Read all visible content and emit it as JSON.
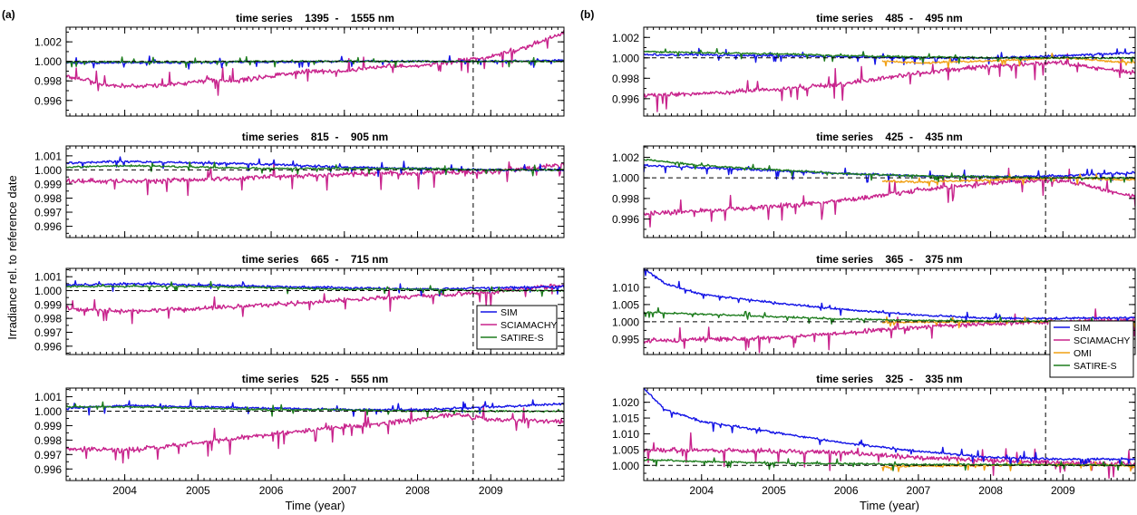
{
  "figure": {
    "colors": {
      "SIM": "#1414e6",
      "SCIAMACHY": "#c8238c",
      "OMI": "#f0a014",
      "SATIRE-S": "#1e7d1e"
    }
  },
  "chart_data": [
    {
      "group": "left",
      "panel_label": "(a)",
      "type": "line",
      "title": "time series    1395  -    1555 nm",
      "xlabel": "",
      "ylabel": "",
      "xlim": [
        2003.2,
        2010.0
      ],
      "ylim": [
        0.9944,
        1.0035
      ],
      "yticks": [
        0.996,
        0.998,
        1.0,
        1.002
      ],
      "ytick_labels": [
        "0.996",
        "0.998",
        "1.000",
        "1.002"
      ],
      "xticks": [
        2004,
        2005,
        2006,
        2007,
        2008,
        2009
      ],
      "xtick_labels": [],
      "reference_date": 2008.76,
      "reference_level": 1.0,
      "legend": null,
      "series": [
        {
          "name": "SIM",
          "x": [
            2003.2,
            2004.0,
            2005.0,
            2006.0,
            2007.0,
            2008.0,
            2009.0,
            2010.0
          ],
          "y": [
            0.99985,
            0.99985,
            0.9999,
            0.99995,
            1.0,
            1.0,
            1.0,
            1.0001
          ]
        },
        {
          "name": "SCIAMACHY",
          "x": [
            2003.2,
            2003.8,
            2004.5,
            2005.0,
            2005.5,
            2006.0,
            2006.5,
            2007.0,
            2007.5,
            2008.0,
            2008.5,
            2009.0,
            2009.5,
            2010.0
          ],
          "y": [
            0.9985,
            0.9975,
            0.9975,
            0.998,
            0.998,
            0.9985,
            0.999,
            0.999,
            0.9995,
            0.9995,
            1.0,
            1.0005,
            1.0015,
            1.003
          ]
        },
        {
          "name": "SATIRE-S",
          "x": [
            2003.2,
            2004.0,
            2005.0,
            2006.0,
            2007.0,
            2008.0,
            2009.0,
            2010.0
          ],
          "y": [
            0.99995,
            0.99995,
            0.99995,
            1.0,
            1.0,
            1.0,
            1.0,
            1.0
          ]
        }
      ]
    },
    {
      "group": "left",
      "type": "line",
      "title": "time series    815  -    905 nm",
      "xlabel": "",
      "ylabel": "Irradiance rel. to reference date",
      "xlim": [
        2003.2,
        2010.0
      ],
      "ylim": [
        0.9952,
        1.0017
      ],
      "yticks": [
        0.996,
        0.997,
        0.998,
        0.999,
        1.0,
        1.001
      ],
      "ytick_labels": [
        "0.996",
        "0.997",
        "0.998",
        "0.999",
        "1.000",
        "1.001"
      ],
      "xticks": [
        2004,
        2005,
        2006,
        2007,
        2008,
        2009
      ],
      "xtick_labels": [],
      "reference_date": 2008.76,
      "reference_level": 1.0,
      "legend": null,
      "series": [
        {
          "name": "SIM",
          "x": [
            2003.2,
            2004.0,
            2005.0,
            2006.0,
            2007.0,
            2008.0,
            2009.0,
            2010.0
          ],
          "y": [
            1.0005,
            1.0006,
            1.0005,
            1.0004,
            1.0002,
            1.0001,
            1.0,
            1.0
          ]
        },
        {
          "name": "SCIAMACHY",
          "x": [
            2003.2,
            2004.0,
            2005.0,
            2006.0,
            2007.0,
            2008.0,
            2009.0,
            2010.0
          ],
          "y": [
            0.9992,
            0.9992,
            0.9993,
            0.9995,
            0.9997,
            0.9998,
            0.9999,
            1.0004
          ]
        },
        {
          "name": "SATIRE-S",
          "x": [
            2003.2,
            2004.0,
            2005.0,
            2006.0,
            2007.0,
            2008.0,
            2009.0,
            2010.0
          ],
          "y": [
            1.0002,
            1.0003,
            1.0002,
            1.0001,
            1.0001,
            1.0001,
            1.0,
            1.0
          ]
        }
      ]
    },
    {
      "group": "left",
      "type": "line",
      "title": "time series    665  -    715 nm",
      "xlabel": "",
      "ylabel": "",
      "xlim": [
        2003.2,
        2010.0
      ],
      "ylim": [
        0.9954,
        1.0016
      ],
      "yticks": [
        0.996,
        0.997,
        0.998,
        0.999,
        1.0,
        1.001
      ],
      "ytick_labels": [
        "0.996",
        "0.997",
        "0.998",
        "0.999",
        "1.000",
        "1.001"
      ],
      "xticks": [
        2004,
        2005,
        2006,
        2007,
        2008,
        2009
      ],
      "xtick_labels": [],
      "reference_date": 2008.76,
      "reference_level": 1.0,
      "legend": {
        "position": "bottom-right",
        "entries": [
          "SIM",
          "SCIAMACHY",
          "SATIRE-S"
        ]
      },
      "series": [
        {
          "name": "SIM",
          "x": [
            2003.2,
            2004.0,
            2005.0,
            2006.0,
            2007.0,
            2008.0,
            2009.0,
            2010.0
          ],
          "y": [
            1.0004,
            1.0005,
            1.0004,
            1.0003,
            1.0002,
            1.0001,
            1.0002,
            1.0003
          ]
        },
        {
          "name": "SCIAMACHY",
          "x": [
            2003.2,
            2004.0,
            2005.0,
            2006.0,
            2007.0,
            2008.0,
            2009.0,
            2010.0
          ],
          "y": [
            0.9987,
            0.9985,
            0.9987,
            0.999,
            0.9993,
            0.9996,
            0.9999,
            1.0004
          ]
        },
        {
          "name": "SATIRE-S",
          "x": [
            2003.2,
            2004.0,
            2005.0,
            2006.0,
            2007.0,
            2008.0,
            2009.0,
            2010.0
          ],
          "y": [
            1.0003,
            1.0003,
            1.0003,
            1.0002,
            1.0001,
            1.0001,
            1.0,
            1.0
          ]
        }
      ]
    },
    {
      "group": "left",
      "type": "line",
      "title": "time series    525  -    555 nm",
      "xlabel": "Time (year)",
      "ylabel": "",
      "xlim": [
        2003.2,
        2010.0
      ],
      "ylim": [
        0.9952,
        1.0016
      ],
      "yticks": [
        0.996,
        0.997,
        0.998,
        0.999,
        1.0,
        1.001
      ],
      "ytick_labels": [
        "0.996",
        "0.997",
        "0.998",
        "0.999",
        "1.000",
        "1.001"
      ],
      "xticks": [
        2004,
        2005,
        2006,
        2007,
        2008,
        2009
      ],
      "xtick_labels": [
        "2004",
        "2005",
        "2006",
        "2007",
        "2008",
        "2009"
      ],
      "reference_date": 2008.76,
      "reference_level": 1.0,
      "legend": null,
      "series": [
        {
          "name": "SIM",
          "x": [
            2003.2,
            2004.0,
            2005.0,
            2006.0,
            2007.0,
            2008.0,
            2009.0,
            2010.0
          ],
          "y": [
            1.0002,
            1.0004,
            1.0003,
            1.0002,
            1.0001,
            1.0001,
            1.0003,
            1.0005
          ]
        },
        {
          "name": "SCIAMACHY",
          "x": [
            2003.2,
            2004.0,
            2005.0,
            2006.0,
            2007.0,
            2008.0,
            2008.5,
            2009.0,
            2010.0
          ],
          "y": [
            0.9974,
            0.9973,
            0.9978,
            0.9984,
            0.9989,
            0.9994,
            0.9998,
            0.9994,
            0.9993
          ]
        },
        {
          "name": "SATIRE-S",
          "x": [
            2003.2,
            2004.0,
            2005.0,
            2006.0,
            2007.0,
            2008.0,
            2009.0,
            2010.0
          ],
          "y": [
            1.0003,
            1.0003,
            1.0002,
            1.0001,
            1.0001,
            1.0,
            1.0,
            1.0
          ]
        }
      ]
    },
    {
      "group": "right",
      "panel_label": "(b)",
      "type": "line",
      "title": "time series    485  -    495 nm",
      "xlabel": "",
      "ylabel": "",
      "xlim": [
        2003.2,
        2010.0
      ],
      "ylim": [
        0.9943,
        1.003
      ],
      "yticks": [
        0.996,
        0.998,
        1.0,
        1.002
      ],
      "ytick_labels": [
        "0.996",
        "0.998",
        "1.000",
        "1.002"
      ],
      "xticks": [
        2004,
        2005,
        2006,
        2007,
        2008,
        2009
      ],
      "xtick_labels": [],
      "reference_date": 2008.76,
      "reference_level": 1.0,
      "legend": null,
      "series": [
        {
          "name": "SIM",
          "x": [
            2003.2,
            2004.0,
            2005.0,
            2006.0,
            2007.0,
            2008.0,
            2009.0,
            2010.0
          ],
          "y": [
            1.0003,
            1.0003,
            1.0002,
            1.0001,
            1.0,
            1.0,
            1.0002,
            1.0005
          ]
        },
        {
          "name": "SCIAMACHY",
          "x": [
            2003.2,
            2004.0,
            2005.0,
            2006.0,
            2007.0,
            2008.0,
            2009.0,
            2010.0
          ],
          "y": [
            0.9963,
            0.9965,
            0.9969,
            0.9975,
            0.9985,
            0.9992,
            0.9995,
            0.9985
          ]
        },
        {
          "name": "OMI",
          "x": [
            2006.5,
            2007.0,
            2008.0,
            2009.0,
            2010.0
          ],
          "y": [
            0.9997,
            0.9995,
            0.9997,
            1.0,
            0.9995
          ]
        },
        {
          "name": "SATIRE-S",
          "x": [
            2003.2,
            2004.0,
            2005.0,
            2006.0,
            2007.0,
            2008.0,
            2009.0,
            2010.0
          ],
          "y": [
            1.0006,
            1.0005,
            1.0004,
            1.0002,
            1.0001,
            1.0,
            1.0,
            1.0
          ]
        }
      ]
    },
    {
      "group": "right",
      "type": "line",
      "title": "time series    425  -    435 nm",
      "xlabel": "",
      "ylabel": "",
      "xlim": [
        2003.2,
        2010.0
      ],
      "ylim": [
        0.9942,
        1.0031
      ],
      "yticks": [
        0.996,
        0.998,
        1.0,
        1.002
      ],
      "ytick_labels": [
        "0.996",
        "0.998",
        "1.000",
        "1.002"
      ],
      "xticks": [
        2004,
        2005,
        2006,
        2007,
        2008,
        2009
      ],
      "xtick_labels": [],
      "reference_date": 2008.76,
      "reference_level": 1.0,
      "legend": null,
      "series": [
        {
          "name": "SIM",
          "x": [
            2003.2,
            2004.0,
            2005.0,
            2006.0,
            2007.0,
            2008.0,
            2009.0,
            2010.0
          ],
          "y": [
            1.0012,
            1.001,
            1.0007,
            1.0004,
            1.0002,
            1.0001,
            1.0002,
            1.0005
          ]
        },
        {
          "name": "SCIAMACHY",
          "x": [
            2003.2,
            2004.0,
            2005.0,
            2006.0,
            2007.0,
            2008.0,
            2009.0,
            2010.0
          ],
          "y": [
            0.9965,
            0.9968,
            0.9972,
            0.9978,
            0.9988,
            0.9995,
            0.9998,
            0.9982
          ]
        },
        {
          "name": "OMI",
          "x": [
            2006.5,
            2007.0,
            2008.0,
            2009.0,
            2010.0
          ],
          "y": [
            0.9997,
            0.9996,
            0.9998,
            1.0,
            0.9998
          ]
        },
        {
          "name": "SATIRE-S",
          "x": [
            2003.2,
            2004.0,
            2005.0,
            2006.0,
            2007.0,
            2008.0,
            2009.0,
            2010.0
          ],
          "y": [
            1.0018,
            1.0012,
            1.0008,
            1.0004,
            1.0002,
            1.0001,
            1.0,
            1.0
          ]
        }
      ]
    },
    {
      "group": "right",
      "type": "line",
      "title": "time series    365  -    375 nm",
      "xlabel": "",
      "ylabel": "",
      "xlim": [
        2003.2,
        2010.0
      ],
      "ylim": [
        0.9905,
        1.0155
      ],
      "yticks": [
        0.995,
        1.0,
        1.005,
        1.01
      ],
      "ytick_labels": [
        "0.995",
        "1.000",
        "1.005",
        "1.010"
      ],
      "xticks": [
        2004,
        2005,
        2006,
        2007,
        2008,
        2009
      ],
      "xtick_labels": [],
      "reference_date": 2008.76,
      "reference_level": 1.0,
      "legend": null,
      "series": [
        {
          "name": "SIM",
          "x": [
            2003.2,
            2003.5,
            2004.0,
            2005.0,
            2006.0,
            2007.0,
            2008.0,
            2009.0,
            2010.0
          ],
          "y": [
            1.0155,
            1.011,
            1.008,
            1.0055,
            1.0035,
            1.002,
            1.001,
            1.001,
            1.0012
          ]
        },
        {
          "name": "SCIAMACHY",
          "x": [
            2003.2,
            2004.0,
            2005.0,
            2006.0,
            2007.0,
            2008.0,
            2009.0,
            2010.0
          ],
          "y": [
            0.9945,
            0.9948,
            0.9955,
            0.9968,
            0.9985,
            0.9995,
            1.0,
            1.0005
          ]
        },
        {
          "name": "OMI",
          "x": [
            2006.5,
            2007.0,
            2008.0,
            2009.0,
            2010.0
          ],
          "y": [
            0.9998,
            0.9999,
            1.0,
            1.0001,
            1.0
          ]
        },
        {
          "name": "SATIRE-S",
          "x": [
            2003.2,
            2004.0,
            2005.0,
            2006.0,
            2007.0,
            2008.0,
            2009.0,
            2010.0
          ],
          "y": [
            1.0028,
            1.0022,
            1.0015,
            1.0008,
            1.0004,
            1.0002,
            1.0001,
            1.0
          ]
        }
      ]
    },
    {
      "group": "right",
      "type": "line",
      "title": "time series    325  -    335 nm",
      "xlabel": "Time (year)",
      "ylabel": "",
      "xlim": [
        2003.2,
        2010.0
      ],
      "ylim": [
        0.9952,
        1.0245
      ],
      "yticks": [
        1.0,
        1.005,
        1.01,
        1.015,
        1.02
      ],
      "ytick_labels": [
        "1.000",
        "1.005",
        "1.010",
        "1.015",
        "1.020"
      ],
      "xticks": [
        2004,
        2005,
        2006,
        2007,
        2008,
        2009
      ],
      "xtick_labels": [
        "2004",
        "2005",
        "2006",
        "2007",
        "2008",
        "2009"
      ],
      "reference_date": 2008.76,
      "reference_level": 1.0,
      "legend": {
        "position": "top-right-outside",
        "entries": [
          "SIM",
          "SCIAMACHY",
          "OMI",
          "SATIRE-S"
        ]
      },
      "series": [
        {
          "name": "SIM",
          "x": [
            2003.2,
            2003.5,
            2004.0,
            2005.0,
            2006.0,
            2007.0,
            2008.0,
            2009.0,
            2010.0
          ],
          "y": [
            1.0245,
            1.0175,
            1.014,
            1.0105,
            1.007,
            1.0045,
            1.0025,
            1.002,
            1.002
          ]
        },
        {
          "name": "SCIAMACHY",
          "x": [
            2003.2,
            2004.0,
            2005.0,
            2006.0,
            2007.0,
            2008.0,
            2009.0,
            2010.0
          ],
          "y": [
            1.005,
            1.0048,
            1.0045,
            1.004,
            1.0025,
            1.0015,
            1.001,
            1.0005
          ]
        },
        {
          "name": "OMI",
          "x": [
            2006.5,
            2007.0,
            2008.0,
            2009.0,
            2010.0
          ],
          "y": [
            0.9995,
            0.9998,
            1.0,
            1.0002,
            1.0
          ]
        },
        {
          "name": "SATIRE-S",
          "x": [
            2003.2,
            2004.0,
            2005.0,
            2006.0,
            2007.0,
            2008.0,
            2009.0,
            2010.0
          ],
          "y": [
            1.0018,
            1.0012,
            1.0008,
            1.0005,
            1.0003,
            1.0002,
            1.0001,
            1.0
          ]
        }
      ]
    }
  ]
}
